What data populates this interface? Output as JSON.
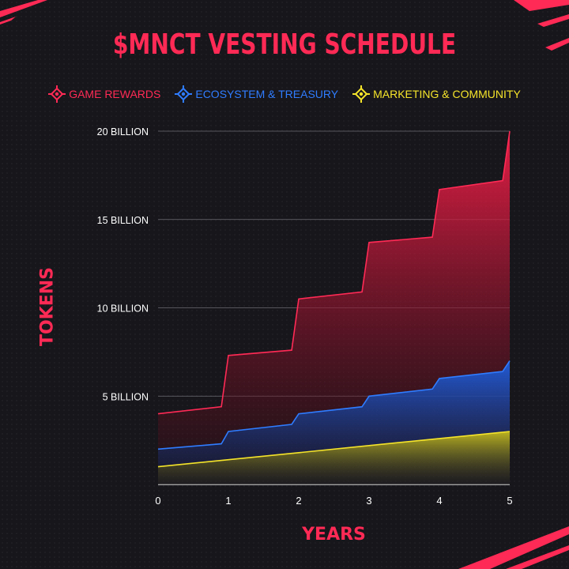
{
  "title": "$MNCT VESTING SCHEDULE",
  "legend": [
    {
      "label": "GAME REWARDS",
      "color": "#ff2a55",
      "icon": "diamond-target-icon"
    },
    {
      "label": "ECOSYSTEM & TREASURY",
      "color": "#2f7cff",
      "icon": "diamond-target-icon"
    },
    {
      "label": "MARKETING & COMMUNITY",
      "color": "#f5e42a",
      "icon": "diamond-target-icon"
    }
  ],
  "chart_data": {
    "type": "area",
    "title": "$MNCT VESTING SCHEDULE",
    "xlabel": "YEARS",
    "ylabel": "TOKENS",
    "xlim": [
      0,
      5
    ],
    "ylim": [
      0,
      20
    ],
    "x_ticks": [
      "0",
      "1",
      "2",
      "3",
      "4",
      "5"
    ],
    "y_ticks": [
      {
        "value": 5,
        "label": "5 BILLION"
      },
      {
        "value": 10,
        "label": "10 BILLION"
      },
      {
        "value": 15,
        "label": "15 BILLION"
      },
      {
        "value": 20,
        "label": "20 BILLION"
      }
    ],
    "grid": true,
    "legend_position": "top",
    "series": [
      {
        "name": "GAME REWARDS",
        "color": "#ff2a55",
        "points": [
          [
            0,
            4.0
          ],
          [
            0.9,
            4.4
          ],
          [
            1.0,
            7.3
          ],
          [
            1.9,
            7.6
          ],
          [
            2.0,
            10.5
          ],
          [
            2.9,
            10.9
          ],
          [
            3.0,
            13.7
          ],
          [
            3.9,
            14.0
          ],
          [
            4.0,
            16.7
          ],
          [
            4.9,
            17.2
          ],
          [
            5.0,
            20.0
          ]
        ]
      },
      {
        "name": "ECOSYSTEM & TREASURY",
        "color": "#2f7cff",
        "points": [
          [
            0,
            2.0
          ],
          [
            0.9,
            2.3
          ],
          [
            1.0,
            3.0
          ],
          [
            1.9,
            3.4
          ],
          [
            2.0,
            4.0
          ],
          [
            2.9,
            4.4
          ],
          [
            3.0,
            5.0
          ],
          [
            3.9,
            5.4
          ],
          [
            4.0,
            6.0
          ],
          [
            4.9,
            6.4
          ],
          [
            5.0,
            7.0
          ]
        ]
      },
      {
        "name": "MARKETING & COMMUNITY",
        "color": "#f5e42a",
        "points": [
          [
            0,
            1.0
          ],
          [
            1,
            1.4
          ],
          [
            2,
            1.8
          ],
          [
            3,
            2.2
          ],
          [
            4,
            2.6
          ],
          [
            5,
            3.0
          ]
        ]
      }
    ]
  }
}
